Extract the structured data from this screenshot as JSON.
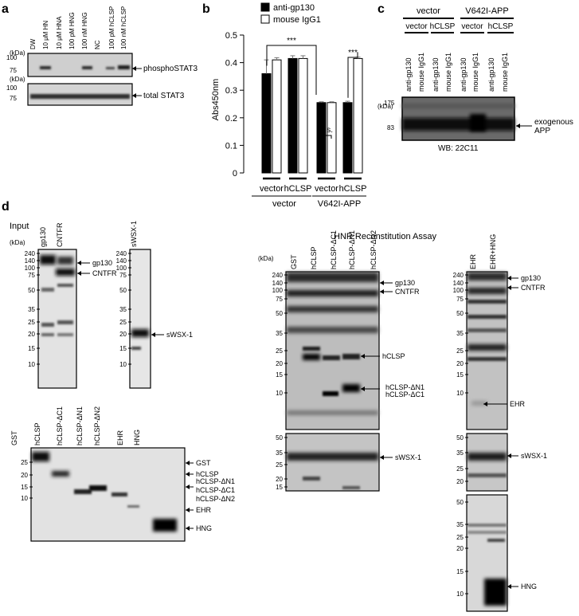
{
  "panels": {
    "a": {
      "label": "a",
      "kda": "(kDa)",
      "lanes": [
        "DW",
        "10 μM HN",
        "10 μM HNA",
        "100 pM HNG",
        "100 nM HNG",
        "NC",
        "100 pM hCLSP",
        "100 nM hCLSP"
      ],
      "blot1": {
        "markers": [
          "100",
          "75"
        ],
        "target": "phosphoSTAT3"
      },
      "blot2": {
        "markers": [
          "100",
          "75"
        ],
        "target": "total STAT3"
      }
    },
    "b": {
      "label": "b",
      "legend": [
        "anti-gp130",
        "mouse IgG1"
      ],
      "colors": {
        "anti": "#000000",
        "igg": "#ffffff"
      },
      "sig": [
        "***",
        "n.s.",
        "***"
      ],
      "group_labels": [
        "vector",
        "V642I-APP"
      ]
    },
    "c": {
      "label": "c",
      "kda": "(kDa)",
      "top_groups": [
        "vector",
        "V642I-APP"
      ],
      "sub_groups": [
        "vector",
        "hCLSP",
        "vector",
        "hCLSP"
      ],
      "lanes": [
        "anti-gp130",
        "mouse IgG1",
        "anti-gp130",
        "mouse IgG1",
        "anti-gp130",
        "mouse IgG1",
        "anti-gp130",
        "mouse IgG1"
      ],
      "markers": [
        "175",
        "83"
      ],
      "target": "exogenous APP",
      "wb": "WB: 22C11"
    },
    "d": {
      "label": "d",
      "input_title": "Input",
      "hnr_title": "HNR Reconstitution Assay",
      "kda": "(kDa)",
      "input1": {
        "lanes": [
          "gp130",
          "CNTFR"
        ],
        "markers": [
          "240",
          "140",
          "100",
          "75",
          "50",
          "35",
          "25",
          "20",
          "15",
          "10"
        ],
        "targets": [
          "gp130",
          "CNTFR"
        ]
      },
      "input2": {
        "lanes": [
          "sWSX-1"
        ],
        "markers": [
          "240",
          "140",
          "100",
          "75",
          "50",
          "35",
          "25",
          "20",
          "15",
          "10"
        ],
        "targets": [
          "sWSX-1"
        ]
      },
      "input3": {
        "lanes": [
          "GST",
          "hCLSP",
          "hCLSP-ΔC1",
          "hCLSP-ΔN1",
          "hCLSP-ΔN2",
          "EHR",
          "HNG"
        ],
        "markers": [
          "25",
          "20",
          "15",
          "10"
        ],
        "targets": [
          "GST",
          "hCLSP",
          "hCLSP-ΔN1",
          "hCLSP-ΔC1",
          "hCLSP-ΔN2",
          "EHR",
          "HNG"
        ]
      },
      "hnr1": {
        "lanes": [
          "GST",
          "hCLSP",
          "hCLSP-ΔC1",
          "hCLSP-ΔN1",
          "hCLSP-ΔN2"
        ],
        "markers": [
          "240",
          "140",
          "100",
          "75",
          "50",
          "35",
          "25",
          "20",
          "15",
          "10"
        ],
        "targets": [
          "gp130",
          "CNTFR",
          "hCLSP",
          "hCLSP-ΔN1",
          "hCLSP-ΔC1"
        ]
      },
      "hnr1b": {
        "markers": [
          "50",
          "35",
          "25",
          "20",
          "15"
        ],
        "targets": [
          "sWSX-1"
        ]
      },
      "hnr2": {
        "lanes": [
          "EHR",
          "EHR+HNG"
        ],
        "markers": [
          "240",
          "140",
          "100",
          "75",
          "50",
          "35",
          "25",
          "20",
          "15",
          "10"
        ],
        "targets": [
          "gp130",
          "CNTFR",
          "EHR"
        ]
      },
      "hnr2b": {
        "markers": [
          "50",
          "35",
          "25",
          "20"
        ],
        "targets": [
          "sWSX-1"
        ]
      },
      "hnr2c": {
        "markers": [
          "50",
          "35",
          "25",
          "20",
          "15",
          "10"
        ],
        "targets": [
          "HNG"
        ]
      }
    }
  },
  "chart_data": {
    "type": "bar",
    "categories": [
      "vector",
      "hCLSP",
      "vector",
      "hCLSP"
    ],
    "groups": [
      "vector",
      "V642I-APP"
    ],
    "series": [
      {
        "name": "anti-gp130",
        "values": [
          0.36,
          0.415,
          0.255,
          0.255
        ],
        "errors": [
          0.05,
          0.01,
          0.003,
          0.005
        ]
      },
      {
        "name": "mouse IgG1",
        "values": [
          0.41,
          0.415,
          0.255,
          0.415
        ],
        "errors": [
          0.008,
          0.01,
          0.003,
          0.005
        ]
      }
    ],
    "ylabel": "Abs450nm",
    "ylim": [
      0,
      0.5
    ],
    "yticks": [
      "0",
      "0.1",
      "0.2",
      "0.3",
      "0.4",
      "0.5"
    ],
    "grid": false
  }
}
